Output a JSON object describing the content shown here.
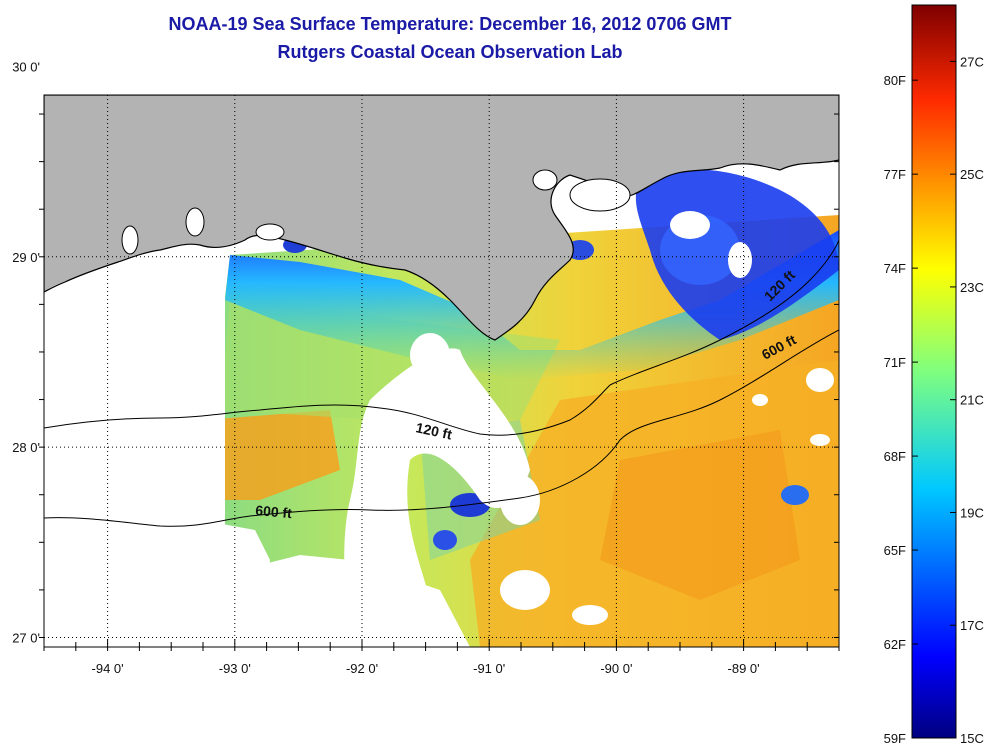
{
  "title": {
    "line1": "NOAA-19 Sea Surface Temperature:  December 16, 2012 0706 GMT",
    "line2": "Rutgers Coastal Ocean Observation Lab"
  },
  "map": {
    "lon_range": [
      -94.5,
      -88.25
    ],
    "lat_range": [
      26.95,
      29.85
    ],
    "lon_ticks": [
      {
        "value": -94,
        "label": "-94 0'"
      },
      {
        "value": -93,
        "label": "-93 0'"
      },
      {
        "value": -92,
        "label": "-92 0'"
      },
      {
        "value": -91,
        "label": "-91 0'"
      },
      {
        "value": -90,
        "label": "-90 0'"
      },
      {
        "value": -89,
        "label": "-89 0'"
      }
    ],
    "lat_ticks": [
      {
        "value": 30,
        "label": "30 0'"
      },
      {
        "value": 29,
        "label": "29 0'"
      },
      {
        "value": 28,
        "label": "28 0'"
      },
      {
        "value": 27,
        "label": "27 0'"
      }
    ],
    "colors": {
      "land": "#b3b3b3",
      "cloud": "#ffffff",
      "coast": "#000000"
    },
    "contour_labels": [
      "120 ft",
      "600 ft",
      "120 ft",
      "600 ft"
    ]
  },
  "colorbar": {
    "min_c": 15,
    "max_c": 28,
    "f_labels": [
      "80F",
      "77F",
      "74F",
      "71F",
      "68F",
      "65F",
      "62F",
      "59F"
    ],
    "c_labels": [
      "27C",
      "25C",
      "23C",
      "21C",
      "19C",
      "17C",
      "15C"
    ]
  }
}
